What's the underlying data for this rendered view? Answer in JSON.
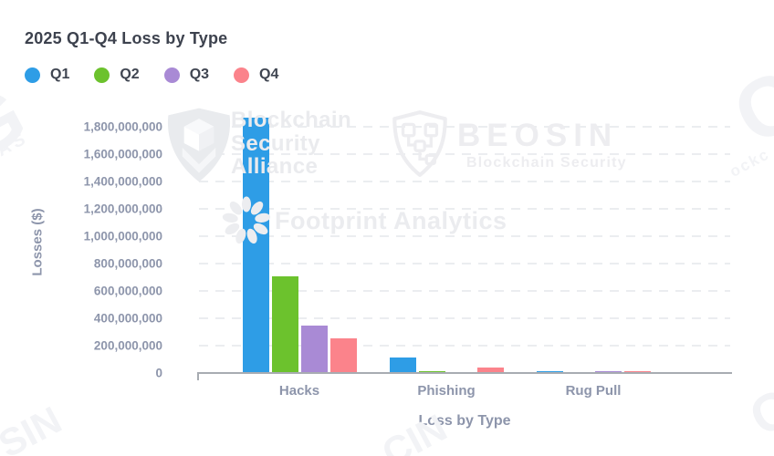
{
  "header": {
    "title": "2025 Q1-Q4 Loss by Type"
  },
  "chart_data": {
    "type": "bar",
    "title": "2025 Q1-Q4 Loss by Type",
    "xlabel": "Loss by Type",
    "ylabel": "Losses ($)",
    "categories": [
      "Hacks",
      "Phishing",
      "Rug Pull"
    ],
    "series": [
      {
        "name": "Q1",
        "color": "#2e9de6",
        "values": [
          1870000000,
          115000000,
          12000000
        ]
      },
      {
        "name": "Q2",
        "color": "#6cc22d",
        "values": [
          710000000,
          13000000,
          2000000
        ]
      },
      {
        "name": "Q3",
        "color": "#a98ad5",
        "values": [
          350000000,
          10000000,
          14000000
        ]
      },
      {
        "name": "Q4",
        "color": "#fb838b",
        "values": [
          255000000,
          40000000,
          14000000
        ]
      }
    ],
    "ylim": [
      0,
      1800000000
    ],
    "ytick_step": 200000000,
    "ytick_labels": [
      "0",
      "200,000,000",
      "400,000,000",
      "600,000,000",
      "800,000,000",
      "1,000,000,000",
      "1,200,000,000",
      "1,400,000,000",
      "1,600,000,000",
      "1,800,000,000"
    ],
    "grid": "dashed-horizontal",
    "legend_position": "top-left"
  },
  "watermarks": {
    "bsa": {
      "icon": "shield-cube-icon",
      "lines": [
        "Blockchain",
        "Security",
        "Alliance"
      ]
    },
    "beosin": {
      "icon": "shield-circuit-icon",
      "name": "BEOSIN",
      "subtitle": "Blockchain Security"
    },
    "footprint": {
      "icon": "burst-icon",
      "text": "Footprint Analytics"
    },
    "fragments": [
      "G",
      "AS",
      "C",
      "ockc",
      "SIN",
      "CIN",
      "C"
    ]
  }
}
